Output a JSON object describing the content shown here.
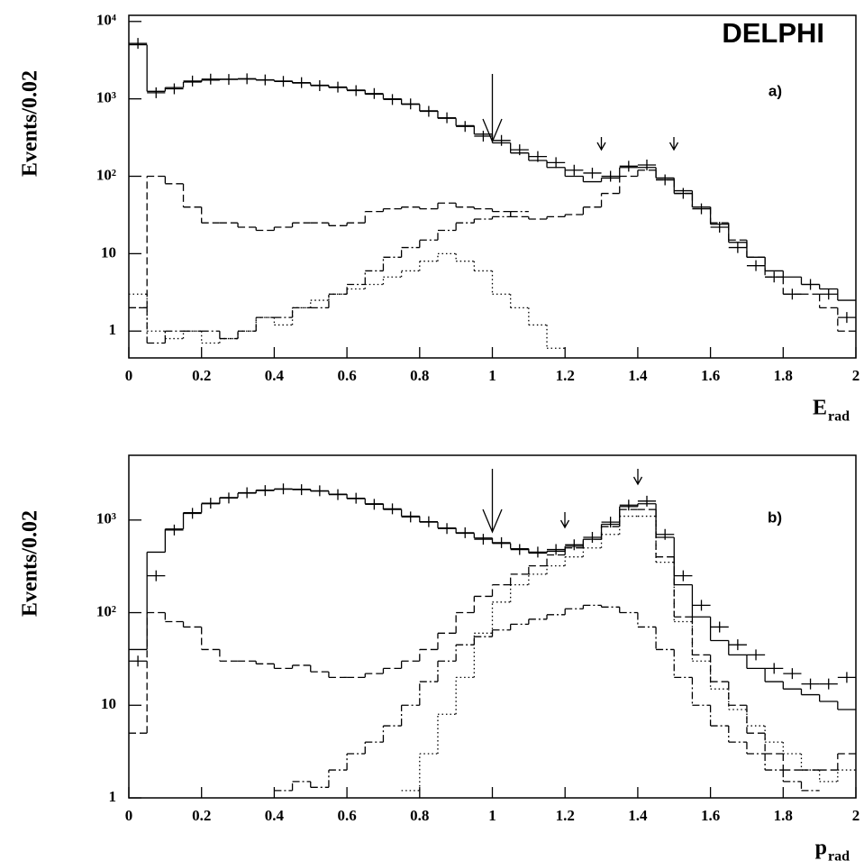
{
  "chart_data": [
    {
      "type": "histogram",
      "annotation": "DELPHI",
      "panel_label": "a)",
      "y_label": "Events/0.02",
      "x_label": "E",
      "x_label_subscript": "rad",
      "log_y": true,
      "xlim": [
        0,
        2
      ],
      "ylim": [
        0.45,
        12000
      ],
      "xticks": [
        0,
        0.2,
        0.4,
        0.6,
        0.8,
        1,
        1.2,
        1.4,
        1.6,
        1.8,
        2
      ],
      "yticks": [
        1,
        10,
        {
          "value": 100,
          "label": "10²"
        },
        {
          "value": 1000,
          "label": "10³"
        },
        {
          "value": 10000,
          "label": "10⁴"
        }
      ],
      "bins": [
        0,
        0.05,
        0.1,
        0.15,
        0.2,
        0.25,
        0.3,
        0.35,
        0.4,
        0.45,
        0.5,
        0.55,
        0.6,
        0.65,
        0.7,
        0.75,
        0.8,
        0.85,
        0.9,
        0.95,
        1,
        1.05,
        1.1,
        1.15,
        1.2,
        1.25,
        1.3,
        1.35,
        1.4,
        1.45,
        1.5,
        1.55,
        1.6,
        1.65,
        1.7,
        1.75,
        1.8,
        1.85,
        1.9,
        1.95,
        2
      ],
      "series": [
        {
          "style": "solid",
          "color": "#000000",
          "values": [
            5000,
            1250,
            1400,
            1650,
            1750,
            1800,
            1800,
            1750,
            1700,
            1600,
            1500,
            1400,
            1300,
            1150,
            1000,
            850,
            700,
            560,
            450,
            350,
            270,
            200,
            160,
            130,
            100,
            85,
            95,
            130,
            130,
            95,
            65,
            40,
            24,
            14,
            9,
            6,
            5,
            4,
            3.5,
            2.5
          ]
        },
        {
          "style": "points",
          "color": "#000000",
          "values": [
            5200,
            1200,
            1350,
            1700,
            1800,
            1780,
            1820,
            1760,
            1680,
            1620,
            1480,
            1420,
            1280,
            1170,
            980,
            860,
            690,
            570,
            440,
            330,
            290,
            220,
            180,
            150,
            120,
            110,
            100,
            135,
            140,
            90,
            60,
            38,
            22,
            12,
            7,
            5,
            3,
            4,
            3,
            1.5
          ]
        },
        {
          "style": "dashed",
          "color": "#000000",
          "values": [
            2,
            100,
            80,
            40,
            25,
            25,
            22,
            20,
            22,
            25,
            25,
            23,
            25,
            35,
            38,
            40,
            38,
            45,
            40,
            38,
            35,
            30,
            28,
            30,
            32,
            40,
            60,
            100,
            120,
            90,
            60,
            40,
            25,
            15,
            9,
            5,
            3,
            3,
            2,
            1
          ]
        },
        {
          "style": "dashdot",
          "color": "#000000",
          "values": [
            2,
            0.7,
            1,
            1,
            1,
            0.8,
            1,
            1.5,
            1.5,
            2,
            2,
            3,
            4,
            6,
            9,
            12,
            15,
            20,
            25,
            28,
            30,
            35,
            null,
            null,
            null,
            null,
            null,
            null,
            null,
            null,
            null,
            null,
            null,
            null,
            null,
            null,
            null,
            null,
            null,
            null
          ]
        },
        {
          "style": "dotted",
          "color": "#000000",
          "values": [
            3,
            1,
            0.8,
            1,
            0.7,
            0.8,
            1,
            1.5,
            1.2,
            2,
            2.5,
            3,
            3.5,
            4,
            5,
            6,
            8,
            10,
            8,
            6,
            3,
            2,
            1.2,
            0.6,
            null,
            null,
            null,
            null,
            null,
            null,
            null,
            null,
            null,
            null,
            null,
            null,
            null,
            null,
            null,
            null
          ]
        }
      ]
    },
    {
      "type": "histogram",
      "panel_label": "b)",
      "y_label": "Events/0.02",
      "x_label": "p",
      "x_label_subscript": "rad",
      "log_y": true,
      "xlim": [
        0,
        2
      ],
      "ylim": [
        1,
        5000
      ],
      "xticks": [
        0,
        0.2,
        0.4,
        0.6,
        0.8,
        1,
        1.2,
        1.4,
        1.6,
        1.8,
        2
      ],
      "yticks": [
        1,
        10,
        {
          "value": 100,
          "label": "10²"
        },
        {
          "value": 1000,
          "label": "10³"
        }
      ],
      "bins": [
        0,
        0.05,
        0.1,
        0.15,
        0.2,
        0.25,
        0.3,
        0.35,
        0.4,
        0.45,
        0.5,
        0.55,
        0.6,
        0.65,
        0.7,
        0.75,
        0.8,
        0.85,
        0.9,
        0.95,
        1,
        1.05,
        1.1,
        1.15,
        1.2,
        1.25,
        1.3,
        1.35,
        1.4,
        1.45,
        1.5,
        1.55,
        1.6,
        1.65,
        1.7,
        1.75,
        1.8,
        1.85,
        1.9,
        1.95,
        2
      ],
      "series": [
        {
          "style": "solid",
          "color": "#000000",
          "values": [
            40,
            450,
            800,
            1200,
            1500,
            1750,
            1950,
            2100,
            2150,
            2150,
            2050,
            1900,
            1700,
            1500,
            1300,
            1100,
            950,
            820,
            720,
            640,
            560,
            490,
            440,
            460,
            520,
            620,
            900,
            1400,
            1500,
            650,
            200,
            90,
            50,
            35,
            25,
            18,
            15,
            13,
            11,
            9
          ]
        },
        {
          "style": "points",
          "color": "#000000",
          "values": [
            30,
            250,
            780,
            1180,
            1520,
            1730,
            1970,
            2080,
            2170,
            2130,
            2070,
            1880,
            1720,
            1480,
            1320,
            1080,
            960,
            810,
            730,
            620,
            570,
            480,
            450,
            480,
            540,
            650,
            950,
            1450,
            1600,
            700,
            250,
            120,
            70,
            45,
            35,
            25,
            22,
            17,
            17,
            20
          ]
        },
        {
          "style": "dashed",
          "color": "#000000",
          "values": [
            5,
            100,
            80,
            70,
            40,
            30,
            30,
            28,
            25,
            27,
            23,
            20,
            20,
            22,
            25,
            30,
            40,
            60,
            100,
            150,
            200,
            260,
            320,
            420,
            500,
            620,
            850,
            1300,
            1300,
            400,
            90,
            35,
            18,
            10,
            5,
            3,
            2,
            2,
            2,
            3
          ]
        },
        {
          "style": "dotted",
          "color": "#000000",
          "values": [
            null,
            null,
            null,
            null,
            null,
            null,
            null,
            null,
            null,
            null,
            null,
            null,
            null,
            null,
            null,
            1.2,
            3,
            8,
            20,
            60,
            130,
            200,
            260,
            320,
            400,
            500,
            700,
            1100,
            1100,
            350,
            80,
            30,
            15,
            9,
            6,
            4,
            3,
            2,
            1.5,
            2
          ]
        },
        {
          "style": "dashdot",
          "color": "#000000",
          "values": [
            null,
            null,
            null,
            null,
            null,
            null,
            null,
            null,
            1.2,
            1.5,
            1.3,
            2,
            3,
            4,
            6,
            10,
            18,
            30,
            45,
            55,
            65,
            75,
            85,
            95,
            110,
            120,
            115,
            100,
            70,
            40,
            20,
            10,
            6,
            4,
            3,
            2,
            1.5,
            1.2,
            null,
            null
          ]
        }
      ]
    }
  ]
}
